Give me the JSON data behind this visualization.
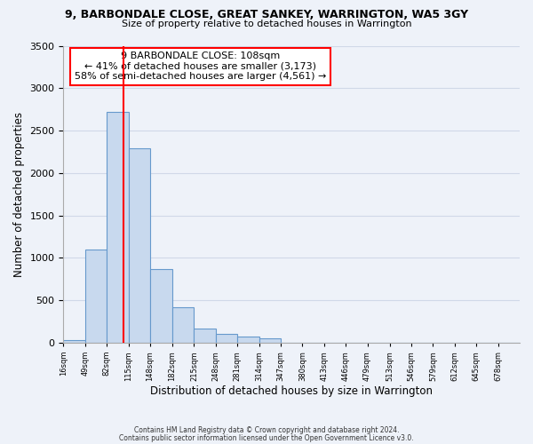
{
  "title1": "9, BARBONDALE CLOSE, GREAT SANKEY, WARRINGTON, WA5 3GY",
  "title2": "Size of property relative to detached houses in Warrington",
  "xlabel": "Distribution of detached houses by size in Warrington",
  "ylabel": "Number of detached properties",
  "bin_labels": [
    "16sqm",
    "49sqm",
    "82sqm",
    "115sqm",
    "148sqm",
    "182sqm",
    "215sqm",
    "248sqm",
    "281sqm",
    "314sqm",
    "347sqm",
    "380sqm",
    "413sqm",
    "446sqm",
    "479sqm",
    "513sqm",
    "546sqm",
    "579sqm",
    "612sqm",
    "645sqm",
    "678sqm"
  ],
  "bar_values": [
    30,
    1100,
    2720,
    2290,
    870,
    420,
    170,
    100,
    70,
    50,
    0,
    0,
    0,
    0,
    0,
    0,
    0,
    0,
    0,
    0,
    0
  ],
  "bar_color": "#c8d9ee",
  "bar_edge_color": "#6699cc",
  "vline_x": 108,
  "vline_color": "red",
  "annotation_text": "9 BARBONDALE CLOSE: 108sqm\n← 41% of detached houses are smaller (3,173)\n58% of semi-detached houses are larger (4,561) →",
  "annotation_box_color": "white",
  "annotation_box_edge_color": "red",
  "footnote1": "Contains HM Land Registry data © Crown copyright and database right 2024.",
  "footnote2": "Contains public sector information licensed under the Open Government Licence v3.0.",
  "ylim": [
    0,
    3500
  ],
  "bin_edges": [
    16,
    49,
    82,
    115,
    148,
    182,
    215,
    248,
    281,
    314,
    347,
    380,
    413,
    446,
    479,
    513,
    546,
    579,
    612,
    645,
    678,
    711
  ],
  "background_color": "#eef2f9",
  "grid_color": "#d0d8e8"
}
